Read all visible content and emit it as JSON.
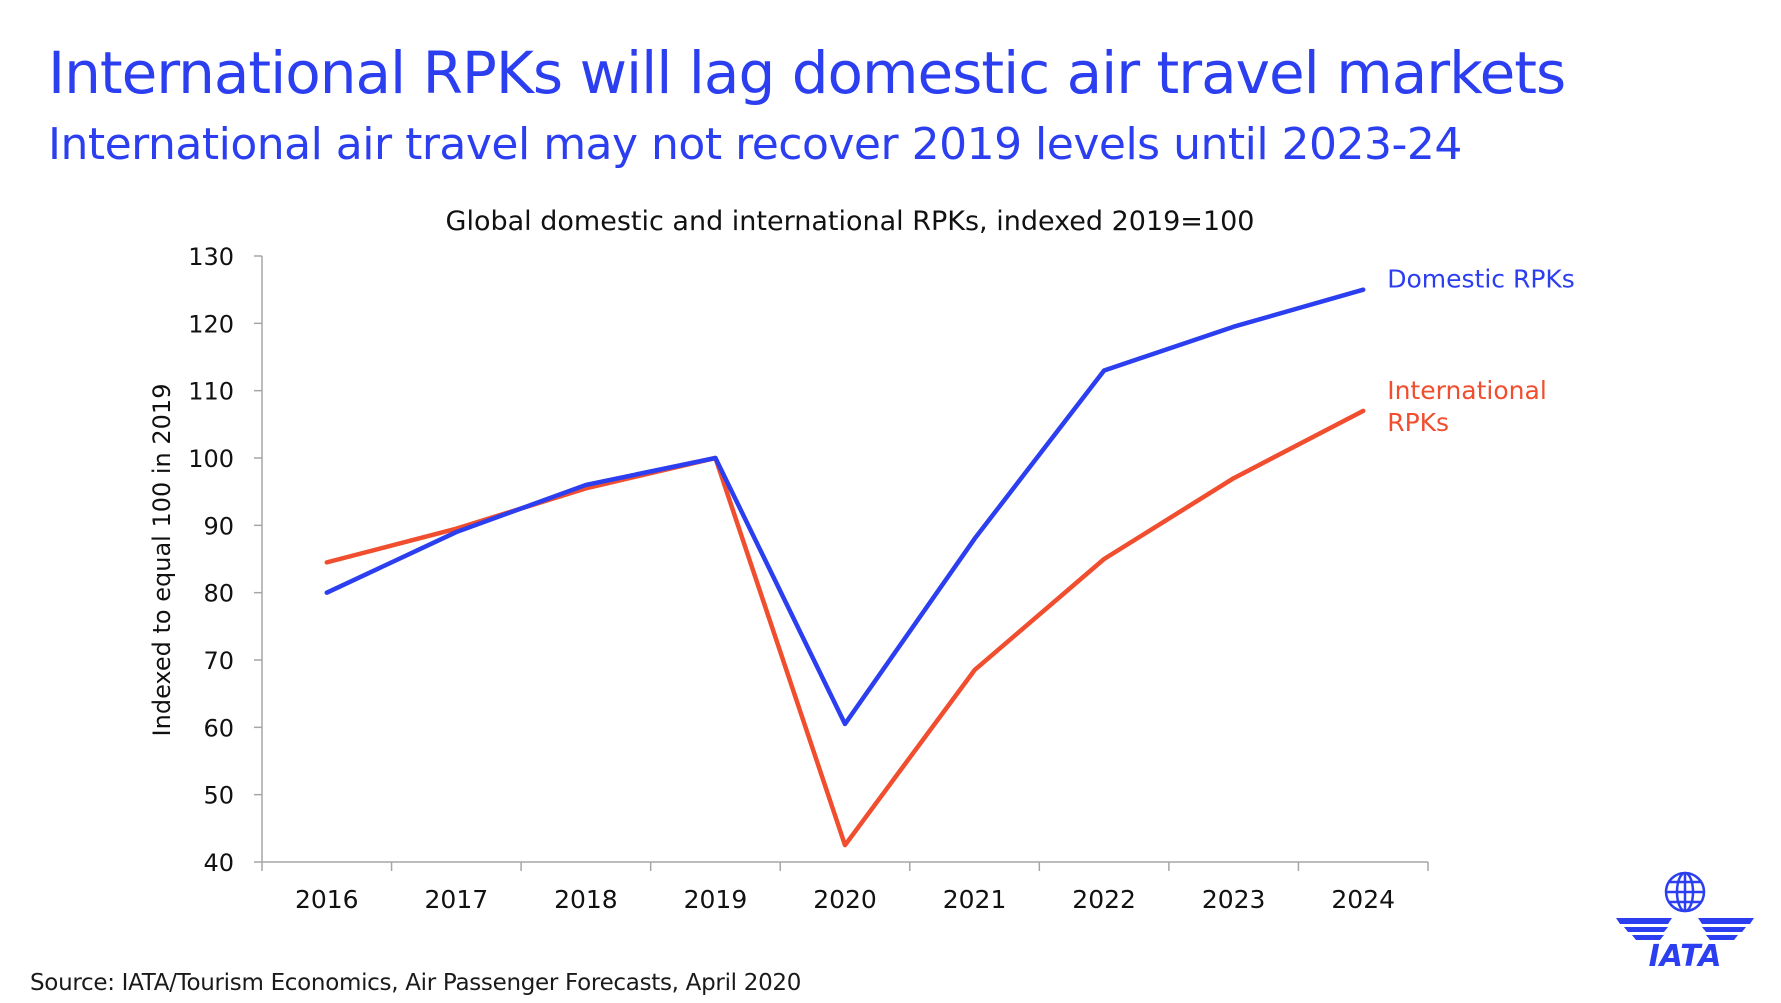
{
  "header": {
    "title": "International RPKs will lag domestic air travel markets",
    "subtitle": "International air travel may not recover 2019 levels until 2023-24",
    "title_color": "#2b3ef0"
  },
  "footer": {
    "source": "Source: IATA/Tourism Economics, Air Passenger Forecasts, April 2020"
  },
  "logo": {
    "icon": "iata-globe-wings-logo",
    "text": "IATA",
    "color": "#2b3ef0"
  },
  "chart_data": {
    "type": "line",
    "title": "Global domestic and international RPKs, indexed 2019=100",
    "xlabel": "",
    "ylabel": "Indexed to equal 100 in 2019",
    "x": [
      "2016",
      "2017",
      "2018",
      "2019",
      "2020",
      "2021",
      "2022",
      "2023",
      "2024"
    ],
    "ylim": [
      40,
      130
    ],
    "yticks": [
      40,
      50,
      60,
      70,
      80,
      90,
      100,
      110,
      120,
      130
    ],
    "grid": false,
    "legend": "direct labels at line ends",
    "series": [
      {
        "name": "Domestic RPKs",
        "color": "#2b3ef0",
        "values": [
          80,
          89,
          96,
          100,
          60.5,
          88,
          113,
          119.5,
          125
        ]
      },
      {
        "name": "International RPKs",
        "label_lines": [
          "International",
          "RPKs"
        ],
        "color": "#f04e2e",
        "values": [
          84.5,
          89.5,
          95.5,
          100,
          42.5,
          68.5,
          85,
          97,
          107
        ]
      }
    ]
  }
}
